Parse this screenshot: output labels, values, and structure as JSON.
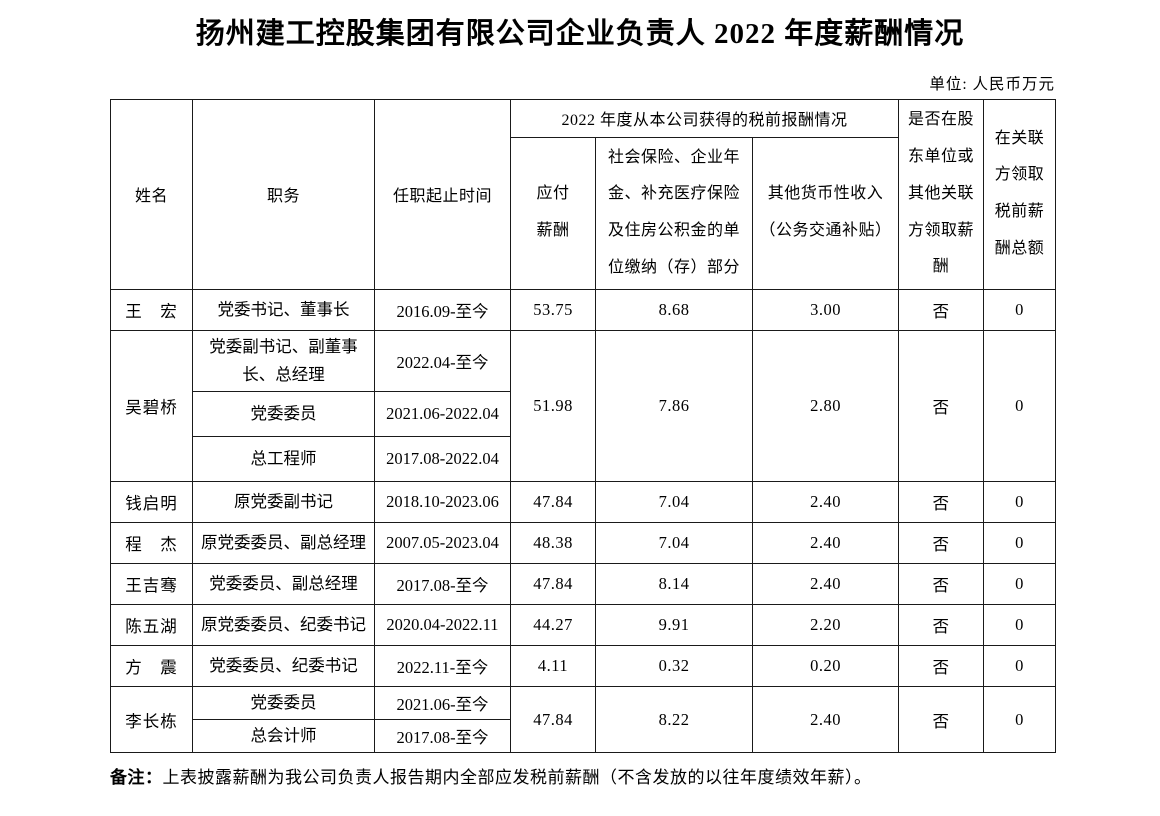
{
  "title": "扬州建工控股集团有限公司企业负责人 2022 年度薪酬情况",
  "unit_label": "单位: 人民币万元",
  "note": {
    "label": "备注：",
    "text": "上表披露薪酬为我公司负责人报告期内全部应发税前薪酬（不含发放的以往年度绩效年薪）。"
  },
  "table": {
    "headers": {
      "name": "姓名",
      "position": "职务",
      "tenure": "任职起止时间",
      "group": "2022 年度从本公司获得的税前报酬情况",
      "payable": "应付薪酬",
      "social": "社会保险、企业年金、补充医疗保险及住房公积金的单位缴纳（存）部分",
      "other": "其他货币性收入（公务交通补贴）",
      "related_paid": "是否在股东单位或其他关联方领取薪酬",
      "related_total": "在关联方领取税前薪酬总额"
    },
    "people": [
      {
        "name": "王　宏",
        "positions": [
          {
            "title": "党委书记、董事长",
            "tenure": "2016.09-至今"
          }
        ],
        "payable": "53.75",
        "social": "8.68",
        "other": "3.00",
        "related": "否",
        "related_total": "0"
      },
      {
        "name": "吴碧桥",
        "positions": [
          {
            "title": "党委副书记、副董事长、总经理",
            "tenure": "2022.04-至今"
          },
          {
            "title": "党委委员",
            "tenure": "2021.06-2022.04"
          },
          {
            "title": "总工程师",
            "tenure": "2017.08-2022.04"
          }
        ],
        "payable": "51.98",
        "social": "7.86",
        "other": "2.80",
        "related": "否",
        "related_total": "0"
      },
      {
        "name": "钱启明",
        "positions": [
          {
            "title": "原党委副书记",
            "tenure": "2018.10-2023.06"
          }
        ],
        "payable": "47.84",
        "social": "7.04",
        "other": "2.40",
        "related": "否",
        "related_total": "0"
      },
      {
        "name": "程　杰",
        "positions": [
          {
            "title": "原党委委员、副总经理",
            "tenure": "2007.05-2023.04"
          }
        ],
        "payable": "48.38",
        "social": "7.04",
        "other": "2.40",
        "related": "否",
        "related_total": "0"
      },
      {
        "name": "王吉骞",
        "positions": [
          {
            "title": "党委委员、副总经理",
            "tenure": "2017.08-至今"
          }
        ],
        "payable": "47.84",
        "social": "8.14",
        "other": "2.40",
        "related": "否",
        "related_total": "0"
      },
      {
        "name": "陈五湖",
        "positions": [
          {
            "title": "原党委委员、纪委书记",
            "tenure": "2020.04-2022.11"
          }
        ],
        "payable": "44.27",
        "social": "9.91",
        "other": "2.20",
        "related": "否",
        "related_total": "0"
      },
      {
        "name": "方　震",
        "positions": [
          {
            "title": "党委委员、纪委书记",
            "tenure": "2022.11-至今"
          }
        ],
        "payable": "4.11",
        "social": "0.32",
        "other": "0.20",
        "related": "否",
        "related_total": "0"
      },
      {
        "name": "李长栋",
        "positions": [
          {
            "title": "党委委员",
            "tenure": "2021.06-至今"
          },
          {
            "title": "总会计师",
            "tenure": "2017.08-至今"
          }
        ],
        "payable": "47.84",
        "social": "8.22",
        "other": "2.40",
        "related": "否",
        "related_total": "0"
      }
    ]
  }
}
